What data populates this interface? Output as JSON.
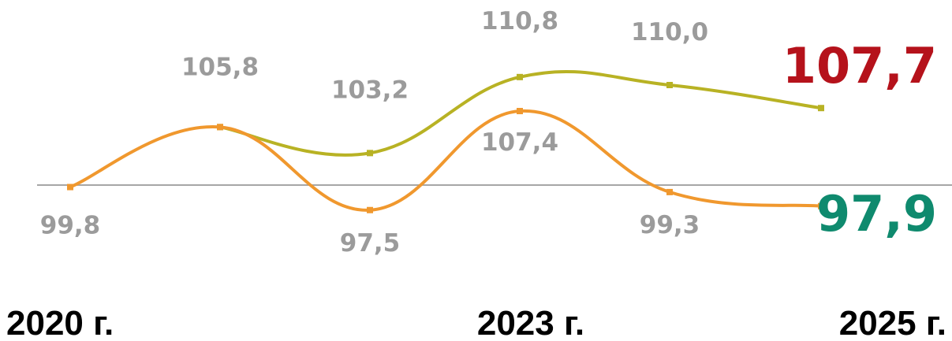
{
  "chart_data": {
    "type": "line",
    "x": [
      "2020",
      "2021",
      "2022",
      "2023",
      "2024",
      "2025"
    ],
    "x_tick_labels": [
      {
        "x": "2020",
        "label": "2020 г."
      },
      {
        "x": "2023",
        "label": "2023 г."
      },
      {
        "x": "2025",
        "label": "2025 г."
      }
    ],
    "baseline": 100,
    "series": [
      {
        "key": "upper",
        "values": [
          null,
          105.8,
          103.2,
          110.8,
          110.0,
          107.7
        ],
        "labels": [
          "",
          "105,8",
          "103,2",
          "110,8",
          "110,0",
          "107,7"
        ],
        "color": "#b8b224"
      },
      {
        "key": "lower",
        "values": [
          99.8,
          105.8,
          97.5,
          107.4,
          99.3,
          97.9
        ],
        "labels": [
          "99,8",
          "",
          "97,5",
          "107,4",
          "99,3",
          "97,9"
        ],
        "color": "#f0982e"
      }
    ],
    "end_label_colors": {
      "upper": "#b5121b",
      "lower": "#0f8a6e"
    },
    "label_color": "#9b9b9b",
    "baseline_color": "#a6a6a6",
    "grid": false,
    "legend": false
  }
}
